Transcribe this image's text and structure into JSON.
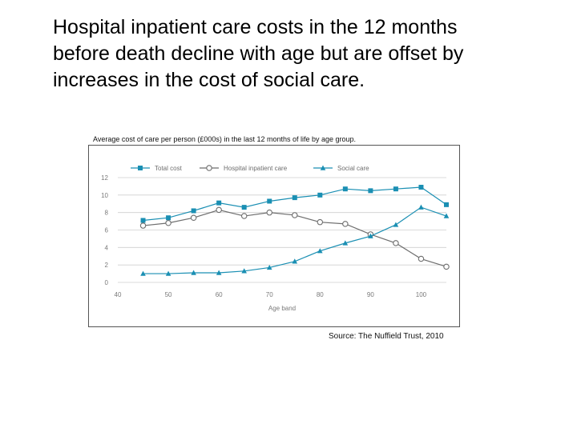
{
  "slide": {
    "title_lines": [
      "Hospital inpatient care costs in the 12 months",
      "before death decline with age but are offset by",
      "increases in the cost of social care."
    ],
    "caption": "Average cost of care per person (£000s) in the last 12 months of life by age group.",
    "source": "Source: The Nuffield Trust, 2010"
  },
  "colors": {
    "total_cost": "#1a8fb3",
    "hospital_inpatient_care": "#6e6e6e",
    "social_care": "#1a8fb3",
    "grid": "#cfcfcf",
    "tick_text": "#7a7a7a"
  },
  "chart_data": {
    "type": "line",
    "title": "",
    "xlabel": "Age band",
    "ylabel": "",
    "xlim": [
      40,
      105
    ],
    "ylim": [
      0,
      12
    ],
    "x_ticks": [
      40,
      50,
      60,
      70,
      80,
      90,
      100
    ],
    "y_ticks": [
      0,
      2,
      4,
      6,
      8,
      10,
      12
    ],
    "grid": "horizontal",
    "legend_position": "top",
    "series": [
      {
        "name": "Total cost",
        "marker": "square",
        "x": [
          45,
          50,
          55,
          60,
          65,
          70,
          75,
          80,
          85,
          90,
          95,
          100,
          105
        ],
        "y": [
          7.1,
          7.4,
          8.2,
          9.1,
          8.6,
          9.3,
          9.7,
          10.0,
          10.7,
          10.5,
          10.7,
          10.9,
          8.9
        ]
      },
      {
        "name": "Hospital inpatient care",
        "marker": "circle",
        "x": [
          45,
          50,
          55,
          60,
          65,
          70,
          75,
          80,
          85,
          90,
          95,
          100,
          105
        ],
        "y": [
          6.5,
          6.8,
          7.4,
          8.3,
          7.6,
          8.0,
          7.7,
          6.9,
          6.7,
          5.5,
          4.5,
          2.7,
          1.8
        ]
      },
      {
        "name": "Social care",
        "marker": "triangle",
        "x": [
          45,
          50,
          55,
          60,
          65,
          70,
          75,
          80,
          85,
          90,
          95,
          100,
          105
        ],
        "y": [
          1.0,
          1.0,
          1.1,
          1.1,
          1.3,
          1.7,
          2.4,
          3.6,
          4.5,
          5.3,
          6.6,
          8.6,
          7.6
        ]
      }
    ]
  }
}
